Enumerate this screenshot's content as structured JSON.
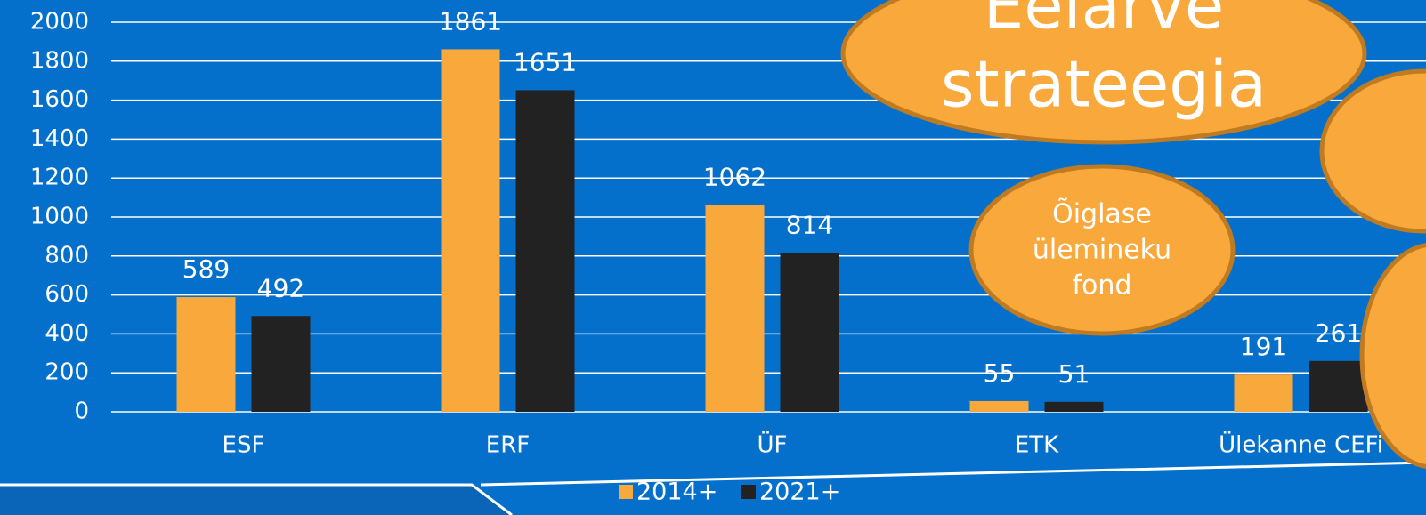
{
  "chart_data": {
    "type": "bar",
    "categories": [
      "ESF",
      "ERF",
      "ÜF",
      "ETK",
      "Ülekanne CEFi"
    ],
    "series": [
      {
        "name": "2014+",
        "color": "#f9a83c",
        "values": [
          589,
          1861,
          1062,
          55,
          191
        ]
      },
      {
        "name": "2021+",
        "color": "#222222",
        "values": [
          492,
          1651,
          814,
          51,
          261
        ]
      }
    ],
    "ylim": [
      0,
      2000
    ],
    "yticks": [
      0,
      200,
      400,
      600,
      800,
      1000,
      1200,
      1400,
      1600,
      1800,
      2000
    ],
    "grid": true,
    "legend": "bottom",
    "annotations": [
      {
        "lines": [
          "Eelarve",
          "strateegia"
        ]
      },
      {
        "lines": [
          "Õiglase",
          "ülemineku",
          "fond"
        ]
      }
    ]
  }
}
